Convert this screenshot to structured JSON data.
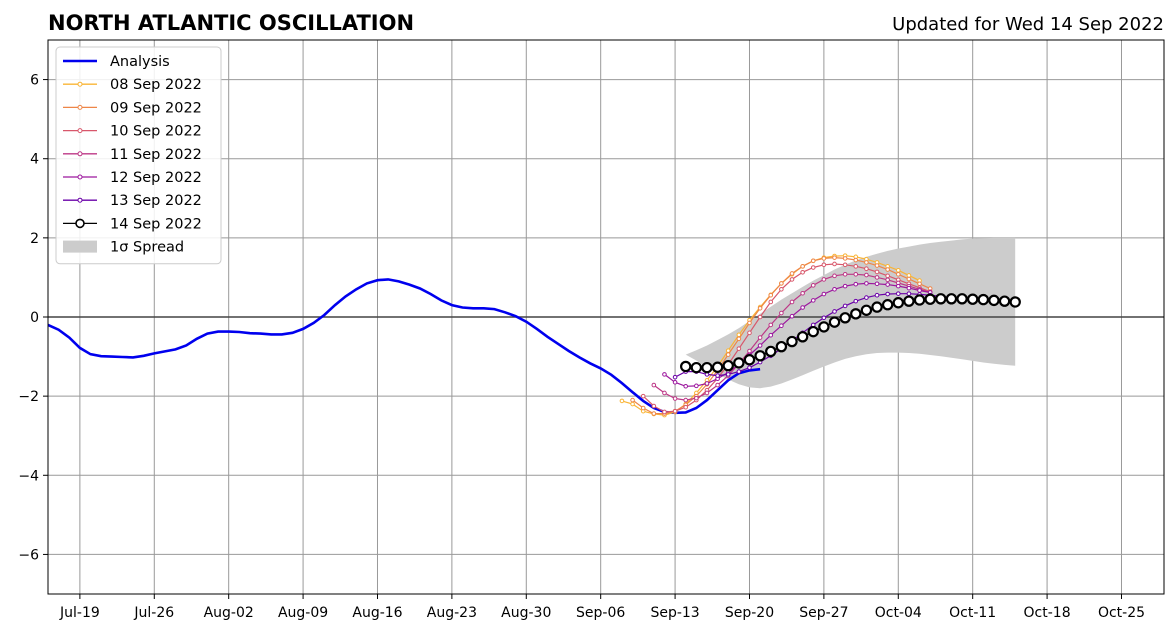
{
  "chart_data": {
    "type": "line",
    "title": "NORTH ATLANTIC OSCILLATION",
    "subtitle": "Updated for Wed 14 Sep 2022",
    "xlabel": "",
    "ylabel": "",
    "x_start": "2022-07-16",
    "xlim": [
      "2022-07-16",
      "2022-10-29"
    ],
    "ylim": [
      -7,
      7
    ],
    "yticks": [
      -6,
      -4,
      -2,
      0,
      2,
      4,
      6
    ],
    "ytick_labels": [
      "−6",
      "−4",
      "−2",
      "0",
      "2",
      "4",
      "6"
    ],
    "xticks": [
      "2022-07-19",
      "2022-07-26",
      "2022-08-02",
      "2022-08-09",
      "2022-08-16",
      "2022-08-23",
      "2022-08-30",
      "2022-09-06",
      "2022-09-13",
      "2022-09-20",
      "2022-09-27",
      "2022-10-04",
      "2022-10-11",
      "2022-10-18",
      "2022-10-25"
    ],
    "xtick_labels": [
      "Jul-19",
      "Jul-26",
      "Aug-02",
      "Aug-09",
      "Aug-16",
      "Aug-23",
      "Aug-30",
      "Sep-06",
      "Sep-13",
      "Sep-20",
      "Sep-27",
      "Oct-04",
      "Oct-11",
      "Oct-18",
      "Oct-25"
    ],
    "grid": true,
    "legend_position": "top-left",
    "series": [
      {
        "name": "Analysis",
        "color": "#0000ee",
        "start": "2022-07-16",
        "values": [
          -0.2,
          -0.32,
          -0.52,
          -0.78,
          -0.94,
          -0.99,
          -1.0,
          -1.01,
          -1.02,
          -0.98,
          -0.92,
          -0.87,
          -0.82,
          -0.72,
          -0.55,
          -0.42,
          -0.37,
          -0.37,
          -0.38,
          -0.41,
          -0.42,
          -0.44,
          -0.44,
          -0.4,
          -0.3,
          -0.15,
          0.05,
          0.3,
          0.52,
          0.7,
          0.85,
          0.93,
          0.95,
          0.9,
          0.82,
          0.72,
          0.58,
          0.42,
          0.3,
          0.24,
          0.22,
          0.22,
          0.2,
          0.12,
          0.02,
          -0.12,
          -0.3,
          -0.5,
          -0.68,
          -0.86,
          -1.02,
          -1.17,
          -1.3,
          -1.46,
          -1.67,
          -1.9,
          -2.12,
          -2.3,
          -2.4,
          -2.42,
          -2.41,
          -2.3,
          -2.1,
          -1.85,
          -1.6,
          -1.42,
          -1.35,
          -1.32
        ]
      },
      {
        "name": "08 Sep 2022",
        "color": "#f9b435",
        "start": "2022-09-08",
        "values": [
          -2.12,
          -2.2,
          -2.38,
          -2.45,
          -2.48,
          -2.4,
          -2.2,
          -1.92,
          -1.6,
          -1.25,
          -0.85,
          -0.45,
          -0.08,
          0.25,
          0.56,
          0.85,
          1.08,
          1.28,
          1.42,
          1.5,
          1.54,
          1.55,
          1.52,
          1.46,
          1.38,
          1.28,
          1.18,
          1.05,
          0.92
        ]
      },
      {
        "name": "09 Sep 2022",
        "color": "#ee8648",
        "start": "2022-09-09",
        "values": [
          -2.1,
          -2.3,
          -2.44,
          -2.44,
          -2.38,
          -2.22,
          -2.0,
          -1.7,
          -1.35,
          -0.95,
          -0.55,
          -0.15,
          0.22,
          0.55,
          0.85,
          1.1,
          1.28,
          1.42,
          1.48,
          1.5,
          1.48,
          1.44,
          1.38,
          1.3,
          1.2,
          1.08,
          0.96,
          0.84,
          0.72
        ]
      },
      {
        "name": "10 Sep 2022",
        "color": "#d8576b",
        "start": "2022-09-10",
        "values": [
          -2.0,
          -2.25,
          -2.4,
          -2.38,
          -2.28,
          -2.1,
          -1.85,
          -1.55,
          -1.2,
          -0.8,
          -0.4,
          0.0,
          0.38,
          0.7,
          0.95,
          1.13,
          1.25,
          1.32,
          1.34,
          1.32,
          1.28,
          1.22,
          1.14,
          1.04,
          0.94,
          0.84,
          0.74,
          0.64
        ]
      },
      {
        "name": "11 Sep 2022",
        "color": "#bd3786",
        "start": "2022-09-11",
        "values": [
          -1.72,
          -1.92,
          -2.06,
          -2.1,
          -2.05,
          -1.92,
          -1.72,
          -1.48,
          -1.18,
          -0.86,
          -0.52,
          -0.2,
          0.1,
          0.38,
          0.6,
          0.8,
          0.95,
          1.04,
          1.08,
          1.08,
          1.06,
          1.0,
          0.94,
          0.86,
          0.78,
          0.7,
          0.62
        ]
      },
      {
        "name": "12 Sep 2022",
        "color": "#9c179e",
        "start": "2022-09-12",
        "values": [
          -1.45,
          -1.65,
          -1.75,
          -1.74,
          -1.68,
          -1.56,
          -1.4,
          -1.2,
          -0.96,
          -0.72,
          -0.46,
          -0.22,
          0.02,
          0.24,
          0.42,
          0.58,
          0.7,
          0.78,
          0.83,
          0.85,
          0.84,
          0.82,
          0.78,
          0.73,
          0.67,
          0.62
        ]
      },
      {
        "name": "13 Sep 2022",
        "color": "#6a00a8",
        "start": "2022-09-13",
        "values": [
          -1.52,
          -1.38,
          -1.38,
          -1.45,
          -1.48,
          -1.45,
          -1.38,
          -1.28,
          -1.14,
          -0.98,
          -0.8,
          -0.6,
          -0.4,
          -0.2,
          -0.02,
          0.14,
          0.28,
          0.4,
          0.49,
          0.55,
          0.58,
          0.59,
          0.59,
          0.57,
          0.55,
          0.52,
          0.49
        ]
      },
      {
        "name": "14 Sep 2022",
        "color": "#000000",
        "start": "2022-09-14",
        "values": [
          -1.25,
          -1.28,
          -1.28,
          -1.27,
          -1.23,
          -1.16,
          -1.08,
          -0.98,
          -0.87,
          -0.75,
          -0.62,
          -0.5,
          -0.37,
          -0.25,
          -0.13,
          -0.02,
          0.08,
          0.17,
          0.25,
          0.31,
          0.36,
          0.4,
          0.43,
          0.45,
          0.46,
          0.46,
          0.46,
          0.45,
          0.44,
          0.42,
          0.4,
          0.38
        ]
      }
    ],
    "spread": {
      "name": "1σ Spread",
      "color": "#cccccc",
      "start": "2022-09-14",
      "lower": [
        -0.95,
        -1.1,
        -1.28,
        -1.44,
        -1.58,
        -1.7,
        -1.78,
        -1.8,
        -1.76,
        -1.68,
        -1.58,
        -1.47,
        -1.36,
        -1.25,
        -1.15,
        -1.06,
        -0.99,
        -0.94,
        -0.91,
        -0.9,
        -0.9,
        -0.91,
        -0.93,
        -0.96,
        -0.99,
        -1.03,
        -1.07,
        -1.11,
        -1.15,
        -1.18,
        -1.21,
        -1.23
      ],
      "upper": [
        -0.95,
        -0.84,
        -0.72,
        -0.58,
        -0.44,
        -0.28,
        -0.1,
        0.08,
        0.26,
        0.44,
        0.6,
        0.76,
        0.92,
        1.06,
        1.2,
        1.32,
        1.43,
        1.52,
        1.6,
        1.67,
        1.73,
        1.78,
        1.83,
        1.87,
        1.9,
        1.93,
        1.96,
        1.98,
        1.99,
        2.0,
        2.0,
        2.0
      ]
    }
  }
}
